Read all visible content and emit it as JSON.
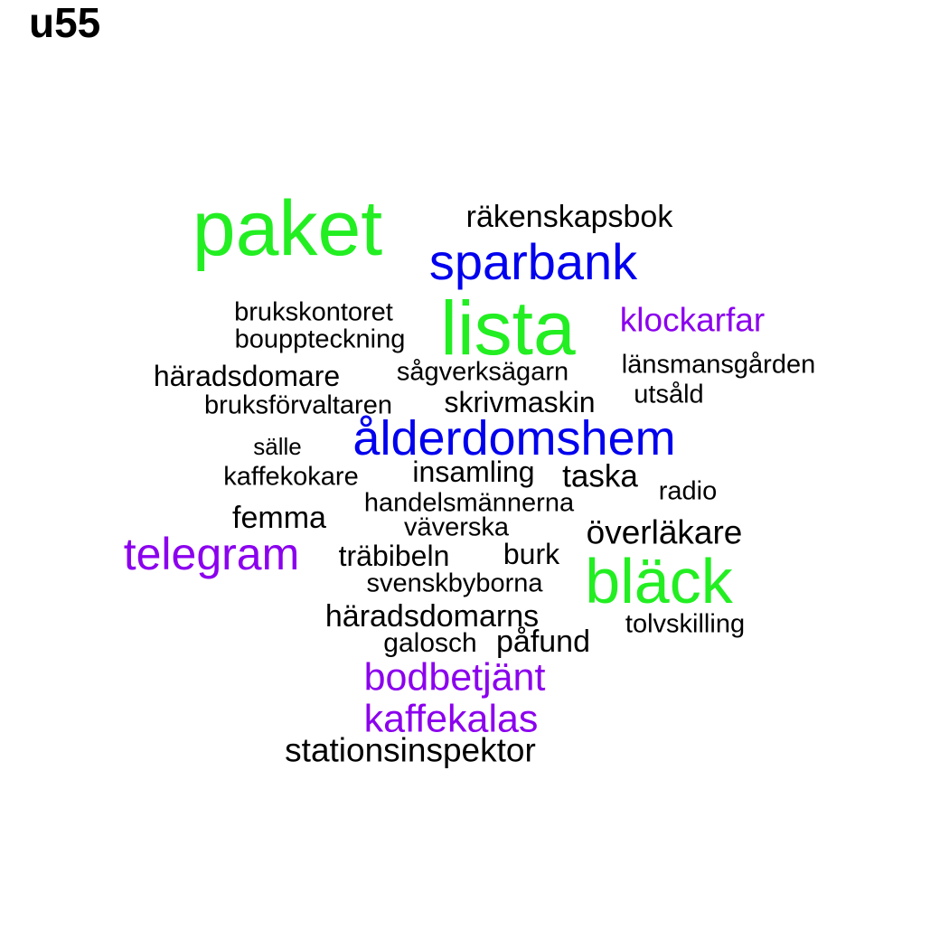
{
  "title": "u55",
  "colors": {
    "green": "#22ee22",
    "blue": "#0000ee",
    "purple": "#8b00ee",
    "black": "#000000"
  },
  "words": [
    {
      "text": "paket",
      "color": "green"
    },
    {
      "text": "räkenskapsbok",
      "color": "black"
    },
    {
      "text": "sparbank",
      "color": "blue"
    },
    {
      "text": "lista",
      "color": "green"
    },
    {
      "text": "klockarfar",
      "color": "purple"
    },
    {
      "text": "brukskontoret",
      "color": "black"
    },
    {
      "text": "bouppteckning",
      "color": "black"
    },
    {
      "text": "länsmansgården",
      "color": "black"
    },
    {
      "text": "häradsdomare",
      "color": "black"
    },
    {
      "text": "sågverksägarn",
      "color": "black"
    },
    {
      "text": "utsåld",
      "color": "black"
    },
    {
      "text": "bruksförvaltaren",
      "color": "black"
    },
    {
      "text": "skrivmaskin",
      "color": "black"
    },
    {
      "text": "ålderdomshem",
      "color": "blue"
    },
    {
      "text": "sälle",
      "color": "black"
    },
    {
      "text": "kaffekokare",
      "color": "black"
    },
    {
      "text": "insamling",
      "color": "black"
    },
    {
      "text": "taska",
      "color": "black"
    },
    {
      "text": "radio",
      "color": "black"
    },
    {
      "text": "handelsmännerna",
      "color": "black"
    },
    {
      "text": "femma",
      "color": "black"
    },
    {
      "text": "väverska",
      "color": "black"
    },
    {
      "text": "överläkare",
      "color": "black"
    },
    {
      "text": "telegram",
      "color": "purple"
    },
    {
      "text": "träbibeln",
      "color": "black"
    },
    {
      "text": "burk",
      "color": "black"
    },
    {
      "text": "bläck",
      "color": "green"
    },
    {
      "text": "svenskbyborna",
      "color": "black"
    },
    {
      "text": "häradsdomarns",
      "color": "black"
    },
    {
      "text": "tolvskilling",
      "color": "black"
    },
    {
      "text": "galosch",
      "color": "black"
    },
    {
      "text": "påfund",
      "color": "black"
    },
    {
      "text": "bodbetjänt",
      "color": "purple"
    },
    {
      "text": "kaffekalas",
      "color": "purple"
    },
    {
      "text": "stationsinspektor",
      "color": "black"
    }
  ]
}
